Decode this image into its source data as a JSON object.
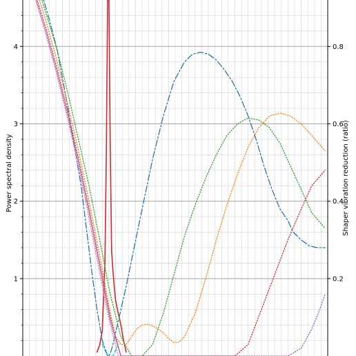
{
  "chart_data": {
    "type": "line",
    "title": "",
    "xlabel": "",
    "ylabel_left": "Power spectral density",
    "ylabel_right": "Shaper vibration reduction (ratio)",
    "grid": true,
    "x_range": [
      15,
      130
    ],
    "ylim_left": [
      0,
      4.6
    ],
    "ylim_right": [
      0,
      0.92
    ],
    "yticks_left": [
      1,
      2,
      3,
      4
    ],
    "yticks_left_labels": [
      "1",
      "2",
      "3",
      "4"
    ],
    "yticks_right": [
      0.2,
      0.4,
      0.6,
      0.8
    ],
    "yticks_right_labels": [
      "0.2",
      "0.4",
      "0.6",
      "0.8"
    ],
    "series": [
      {
        "axis": "left",
        "color": "#d62728",
        "style": "solid",
        "x": [
          43,
          44,
          45,
          46,
          46.5,
          47,
          47.5,
          48,
          48.5,
          49,
          49.5,
          50,
          51,
          52,
          53,
          54
        ],
        "y": [
          0.05,
          0.14,
          0.33,
          1.2,
          2.6,
          4.6,
          4.6,
          2.7,
          1.35,
          1.1,
          0.9,
          0.72,
          0.55,
          0.4,
          0.2,
          0.05
        ]
      },
      {
        "axis": "right",
        "color": "#1f77b4",
        "style": "dashdot",
        "x": [
          22,
          25,
          28,
          31,
          34,
          37,
          39,
          41,
          43,
          45,
          47,
          48,
          49,
          51,
          54,
          57,
          60,
          64,
          68,
          72,
          76,
          79,
          82,
          85,
          88,
          91,
          94,
          97,
          100,
          103,
          106,
          109,
          112,
          115,
          117,
          120,
          123,
          126,
          129
        ],
        "y": [
          0.94,
          0.87,
          0.79,
          0.68,
          0.56,
          0.44,
          0.33,
          0.22,
          0.12,
          0.04,
          0.0,
          0.005,
          0.03,
          0.09,
          0.18,
          0.28,
          0.38,
          0.51,
          0.62,
          0.71,
          0.76,
          0.78,
          0.785,
          0.78,
          0.765,
          0.74,
          0.71,
          0.67,
          0.62,
          0.56,
          0.49,
          0.43,
          0.38,
          0.35,
          0.32,
          0.3,
          0.285,
          0.28,
          0.28
        ]
      },
      {
        "axis": "right",
        "color": "#2ca02c",
        "style": "dotted",
        "x": [
          20,
          24,
          28,
          32,
          36,
          40,
          44,
          48,
          52,
          56,
          60,
          64,
          68,
          72,
          76,
          80,
          84,
          88,
          92,
          96,
          100,
          104,
          108,
          112,
          116,
          120,
          124,
          129
        ],
        "y": [
          0.97,
          0.88,
          0.79,
          0.68,
          0.56,
          0.44,
          0.3,
          0.16,
          0.05,
          0.0,
          0.0,
          0.03,
          0.11,
          0.21,
          0.31,
          0.39,
          0.46,
          0.52,
          0.57,
          0.6,
          0.615,
          0.61,
          0.59,
          0.55,
          0.49,
          0.43,
          0.37,
          0.33
        ]
      },
      {
        "axis": "right",
        "color": "#ff7f0e",
        "style": "dotted",
        "x": [
          20,
          24,
          28,
          32,
          36,
          40,
          44,
          48,
          50,
          52,
          54,
          56,
          58,
          60,
          62,
          64,
          66,
          68,
          70,
          72,
          74,
          76,
          80,
          84,
          88,
          92,
          96,
          100,
          104,
          108,
          112,
          116,
          120,
          124,
          129
        ],
        "y": [
          0.95,
          0.86,
          0.76,
          0.65,
          0.53,
          0.4,
          0.26,
          0.11,
          0.05,
          0.03,
          0.03,
          0.05,
          0.07,
          0.08,
          0.082,
          0.078,
          0.07,
          0.06,
          0.045,
          0.035,
          0.036,
          0.05,
          0.11,
          0.2,
          0.3,
          0.39,
          0.47,
          0.54,
          0.59,
          0.62,
          0.628,
          0.62,
          0.6,
          0.57,
          0.53
        ]
      },
      {
        "axis": "right",
        "color": "#d62728",
        "style": "dotted",
        "x": [
          20,
          24,
          28,
          32,
          36,
          40,
          44,
          48,
          52,
          60,
          70,
          75,
          80,
          85,
          90,
          95,
          100,
          105,
          110,
          115,
          120,
          124,
          129
        ],
        "y": [
          0.93,
          0.84,
          0.74,
          0.63,
          0.51,
          0.38,
          0.24,
          0.1,
          0.0,
          0.0,
          0.0,
          0.0,
          0.0,
          0.0,
          0.0,
          0.0,
          0.03,
          0.12,
          0.21,
          0.3,
          0.38,
          0.44,
          0.48
        ]
      },
      {
        "axis": "right",
        "color": "#9467bd",
        "style": "dotted",
        "x": [
          20,
          24,
          28,
          32,
          36,
          40,
          44,
          48,
          52,
          60,
          80,
          100,
          115,
          120,
          124,
          127,
          129
        ],
        "y": [
          0.92,
          0.83,
          0.73,
          0.62,
          0.5,
          0.37,
          0.23,
          0.09,
          0.0,
          0.0,
          0.0,
          0.0,
          0.0,
          0.02,
          0.07,
          0.12,
          0.16
        ]
      },
      {
        "axis": "right",
        "color": "#e377c2",
        "style": "dotted",
        "x": [
          19,
          23,
          27,
          31,
          35,
          39,
          43,
          47,
          51
        ],
        "y": [
          0.94,
          0.85,
          0.75,
          0.64,
          0.52,
          0.39,
          0.25,
          0.11,
          0.0
        ]
      },
      {
        "axis": "right",
        "color": "#17becf",
        "style": "dashed",
        "x": [
          45,
          47,
          49,
          51
        ],
        "y": [
          0.03,
          0.0,
          0.0,
          0.03
        ]
      }
    ]
  }
}
